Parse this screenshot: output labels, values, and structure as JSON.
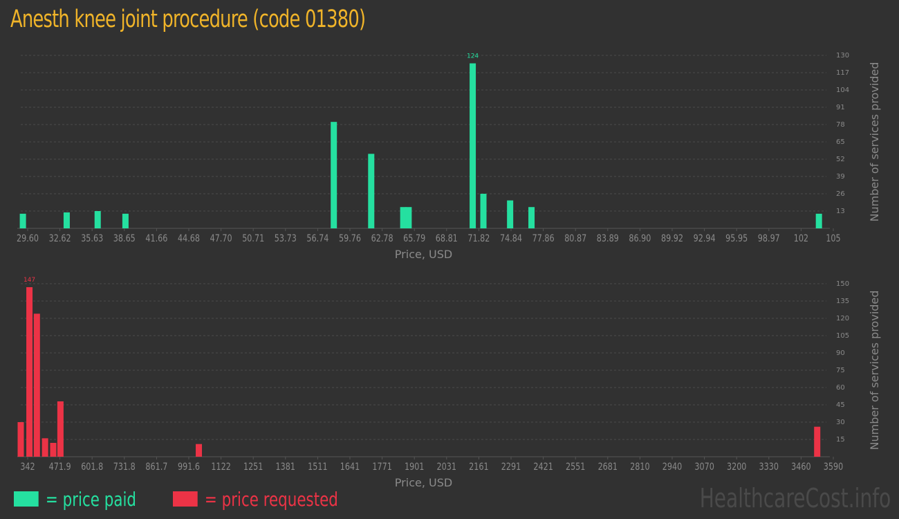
{
  "title": "Anesth knee joint procedure (code 01380)",
  "colors": {
    "paid": "#25e0a0",
    "requested": "#ec3346",
    "title": "#f0b429",
    "background": "#313131"
  },
  "legend": {
    "paid": "= price paid",
    "requested": "= price requested"
  },
  "watermark": "HealthcareCost.info",
  "chart_data": [
    {
      "type": "bar",
      "xlabel": "Price, USD",
      "ylabel": "Number of services provided",
      "xlim": [
        29.6,
        105
      ],
      "ylim": [
        0,
        130
      ],
      "yticks": [
        13,
        26,
        39,
        52,
        65,
        78,
        91,
        104,
        117,
        130
      ],
      "xtick_labels": [
        "29.60",
        "32.62",
        "35.63",
        "38.65",
        "41.66",
        "44.68",
        "47.70",
        "50.71",
        "53.73",
        "56.74",
        "59.76",
        "62.78",
        "65.79",
        "68.81",
        "71.82",
        "74.84",
        "77.86",
        "80.87",
        "83.89",
        "86.90",
        "89.92",
        "92.94",
        "95.95",
        "98.97",
        "102",
        "105"
      ],
      "series": [
        {
          "color": "#25e0a0",
          "x": [
            29.8,
            33.9,
            36.8,
            39.4,
            58.9,
            62.4,
            65.4,
            65.9,
            71.9,
            72.9,
            75.4,
            77.4,
            104.3
          ],
          "values": [
            11,
            12,
            13,
            11,
            80,
            56,
            16,
            16,
            124,
            26,
            21,
            16,
            11
          ]
        }
      ],
      "max_label": "124",
      "grid": true
    },
    {
      "type": "bar",
      "xlabel": "Price, USD",
      "ylabel": "Number of services provided",
      "xlim": [
        342,
        3590
      ],
      "ylim": [
        0,
        150
      ],
      "yticks": [
        15,
        30,
        45,
        60,
        75,
        90,
        105,
        120,
        135,
        150
      ],
      "xtick_labels": [
        "342",
        "471.9",
        "601.8",
        "731.8",
        "861.7",
        "991.6",
        "1122",
        "1251",
        "1381",
        "1511",
        "1641",
        "1771",
        "1901",
        "2031",
        "2161",
        "2291",
        "2421",
        "2551",
        "2681",
        "2810",
        "2940",
        "3070",
        "3200",
        "3330",
        "3460",
        "3590"
      ],
      "series": [
        {
          "color": "#ec3346",
          "x": [
            342,
            377,
            407,
            440,
            473,
            502,
            1060,
            3553
          ],
          "values": [
            30,
            147,
            124,
            16,
            12,
            48,
            11,
            26
          ]
        }
      ],
      "max_label": "147",
      "grid": true
    }
  ]
}
